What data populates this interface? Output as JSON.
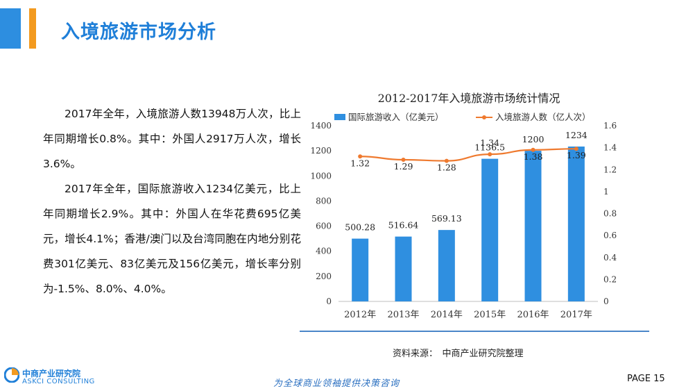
{
  "header": {
    "title": "入境旅游市场分析"
  },
  "body": {
    "paragraphs": [
      "2017年全年，入境旅游人数13948万人次，比上年同期增长0.8%。其中：外国人2917万人次，增长3.6%。",
      "2017年全年，国际旅游收入1234亿美元，比上年同期增长2.9%。其中：外国人在华花费695亿美元，增长4.1%；香港/澳门以及台湾同胞在内地分别花费301亿美元、83亿美元及156亿美元，增长率分别为-1.5%、8.0%、4.0%。"
    ]
  },
  "chart_data": {
    "type": "bar+line",
    "title": "2012-2017年入境旅游市场统计情况",
    "categories": [
      "2012年",
      "2013年",
      "2014年",
      "2015年",
      "2016年",
      "2017年"
    ],
    "series": [
      {
        "name": "国际旅游收入（亿美元）",
        "type": "bar",
        "axis": "left",
        "values": [
          500.28,
          516.64,
          569.13,
          1136.5,
          1200,
          1234
        ],
        "labels": [
          "500.28",
          "516.64",
          "569.13",
          "1136.5",
          "1200",
          "1234"
        ]
      },
      {
        "name": "入境旅游人数（亿人次）",
        "type": "line",
        "axis": "right",
        "values": [
          1.32,
          1.29,
          1.28,
          1.34,
          1.38,
          1.39
        ],
        "labels": [
          "1.32",
          "1.29",
          "1.28",
          "1.34",
          "1.38",
          "1.39"
        ]
      }
    ],
    "y_left": {
      "min": 0,
      "max": 1400,
      "ticks": [
        "0",
        "200",
        "400",
        "600",
        "800",
        "1000",
        "1200",
        "1400"
      ]
    },
    "y_right": {
      "min": 0,
      "max": 1.6,
      "ticks": [
        "0",
        "0.2",
        "0.4",
        "0.6",
        "0.8",
        "1",
        "1.2",
        "1.4",
        "1.6"
      ]
    },
    "legend_position": "top",
    "grid": false,
    "colors": {
      "bar": "#2f8fe0",
      "line": "#ef7a2f"
    }
  },
  "source": {
    "text": "资料来源：　中商产业研究院整理"
  },
  "footer": {
    "logo_cn": "中商产业研究院",
    "logo_en": "ASKCI CONSULTING",
    "slogan": "为全球商业领袖提供决策咨询",
    "page_label": "PAGE 15"
  },
  "colors": {
    "title": "#1f7fd8",
    "accent_blue": "#2d8ee0",
    "accent_orange": "#f39a1f"
  }
}
